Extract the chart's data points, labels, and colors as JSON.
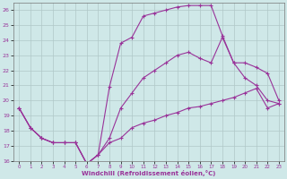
{
  "xlabel": "Windchill (Refroidissement éolien,°C)",
  "background_color": "#cfe8e8",
  "grid_color": "#b0c8c8",
  "line_color": "#993399",
  "xlim": [
    -0.5,
    23.5
  ],
  "ylim": [
    16,
    26.5
  ],
  "yticks": [
    16,
    17,
    18,
    19,
    20,
    21,
    22,
    23,
    24,
    25,
    26
  ],
  "xticks": [
    0,
    1,
    2,
    3,
    4,
    5,
    6,
    7,
    8,
    9,
    10,
    11,
    12,
    13,
    14,
    15,
    16,
    17,
    18,
    19,
    20,
    21,
    22,
    23
  ],
  "line1_x": [
    0,
    1,
    2,
    3,
    4,
    5,
    6,
    7,
    8,
    9,
    10,
    11,
    12,
    13,
    14,
    15,
    16,
    17,
    18,
    19,
    20,
    21,
    22,
    23
  ],
  "line1_y": [
    19.5,
    18.2,
    17.5,
    17.2,
    17.2,
    17.2,
    15.8,
    16.4,
    17.2,
    17.5,
    18.2,
    18.5,
    18.7,
    19.0,
    19.2,
    19.5,
    19.6,
    19.8,
    20.0,
    20.2,
    20.5,
    20.8,
    19.5,
    19.8
  ],
  "line2_x": [
    0,
    1,
    2,
    3,
    4,
    5,
    6,
    7,
    8,
    9,
    10,
    11,
    12,
    13,
    14,
    15,
    16,
    17,
    18,
    19,
    20,
    21,
    22,
    23
  ],
  "line2_y": [
    19.5,
    18.2,
    17.5,
    17.2,
    17.2,
    17.2,
    15.8,
    16.4,
    20.9,
    23.8,
    24.2,
    25.6,
    25.8,
    26.0,
    26.2,
    26.3,
    26.3,
    26.3,
    24.3,
    22.5,
    21.5,
    21.0,
    20.0,
    19.8
  ],
  "line3_x": [
    0,
    1,
    2,
    3,
    4,
    5,
    6,
    7,
    8,
    9,
    10,
    11,
    12,
    13,
    14,
    15,
    16,
    17,
    18,
    19,
    20,
    21,
    22,
    23
  ],
  "line3_y": [
    19.5,
    18.2,
    17.5,
    17.2,
    17.2,
    17.2,
    15.8,
    16.4,
    17.5,
    19.5,
    20.5,
    21.5,
    22.0,
    22.5,
    23.0,
    23.2,
    22.8,
    22.5,
    24.2,
    22.5,
    22.5,
    22.2,
    21.8,
    20.0
  ]
}
